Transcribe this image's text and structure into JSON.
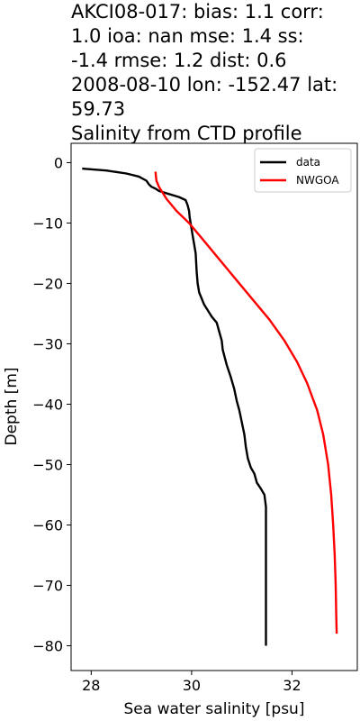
{
  "chart_data": {
    "type": "line",
    "title": "AKCI08-017: bias: 1.1  corr:\n1.0  ioa: nan  mse: 1.4  ss:\n-1.4  rmse: 1.2  dist: 0.6\n2008-08-10 lon: -152.47 lat:\n59.73\nSalinity from CTD profile",
    "xlabel": "Sea water salinity [psu]",
    "ylabel": "Depth [m]",
    "xlim": [
      27.6,
      33.3
    ],
    "ylim": [
      -84.1,
      3.2
    ],
    "xticks": [
      28,
      30,
      32
    ],
    "xtick_labels": [
      "28",
      "30",
      "32"
    ],
    "yticks": [
      0,
      -10,
      -20,
      -30,
      -40,
      -50,
      -60,
      -70,
      -80
    ],
    "ytick_labels": [
      "0",
      "−10",
      "−20",
      "−30",
      "−40",
      "−50",
      "−60",
      "−70",
      "−80"
    ],
    "grid": false,
    "legend_position": "top-right",
    "series": [
      {
        "name": "data",
        "color": "#000000",
        "x": [
          27.82,
          28.3,
          28.7,
          28.95,
          29.1,
          29.15,
          29.2,
          29.28,
          29.35,
          29.55,
          29.75,
          29.88,
          29.92,
          29.95,
          29.96,
          29.98,
          30.02,
          30.08,
          30.1,
          30.12,
          30.15,
          30.25,
          30.4,
          30.5,
          30.55,
          30.6,
          30.62,
          30.7,
          30.78,
          30.85,
          30.9,
          30.95,
          31.0,
          31.05,
          31.08,
          31.12,
          31.18,
          31.25,
          31.3,
          31.38,
          31.45,
          31.48,
          31.48,
          31.48
        ],
        "y": [
          -1.0,
          -1.3,
          -1.8,
          -2.3,
          -3.0,
          -3.6,
          -4.0,
          -4.3,
          -4.7,
          -5.2,
          -5.7,
          -6.2,
          -7.0,
          -8.0,
          -9.0,
          -10.0,
          -12.0,
          -15.0,
          -18.0,
          -20.0,
          -21.5,
          -23.5,
          -25.5,
          -26.5,
          -28.0,
          -29.5,
          -31.0,
          -33.5,
          -35.5,
          -37.5,
          -39.5,
          -41.0,
          -43.0,
          -45.0,
          -47.0,
          -49.0,
          -50.5,
          -51.5,
          -53.0,
          -54.0,
          -55.0,
          -57.0,
          -65.0,
          -80.0
        ]
      },
      {
        "name": "NWGOA",
        "color": "#ff0000",
        "x": [
          29.28,
          29.3,
          29.35,
          29.5,
          29.7,
          29.95,
          30.2,
          30.5,
          30.85,
          31.2,
          31.55,
          31.85,
          32.1,
          32.3,
          32.5,
          32.62,
          32.72,
          32.78,
          32.82,
          32.85,
          32.87,
          32.88,
          32.89
        ],
        "y": [
          -1.5,
          -3.0,
          -4.0,
          -6.0,
          -8.0,
          -10.0,
          -12.5,
          -15.5,
          -19.0,
          -22.5,
          -26.0,
          -29.5,
          -33.0,
          -36.5,
          -41.0,
          -45.0,
          -50.0,
          -55.0,
          -60.0,
          -65.0,
          -70.0,
          -75.0,
          -78.0
        ]
      }
    ]
  }
}
